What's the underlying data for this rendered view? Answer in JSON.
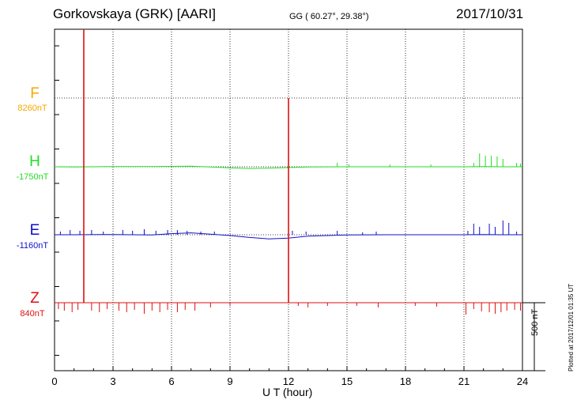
{
  "header": {
    "station": "Gorkovskaya (GRK)  [AARI]",
    "coords": "GG ( 60.27°,  29.38°)",
    "date": "2017/10/31"
  },
  "components": [
    {
      "name": "F",
      "base": "8260nT",
      "color": "#f5a800"
    },
    {
      "name": "H",
      "base": "-1750nT",
      "color": "#22dd22"
    },
    {
      "name": "E",
      "base": "-1160nT",
      "color": "#1010cc"
    },
    {
      "name": "Z",
      "base": "840nT",
      "color": "#dd1111"
    }
  ],
  "axis": {
    "xlabel": "U T (hour)",
    "ticks": [
      "0",
      "3",
      "6",
      "9",
      "12",
      "15",
      "18",
      "21",
      "24"
    ]
  },
  "scale": {
    "label": "500 nT"
  },
  "footer": {
    "plotted": "Plotted at 2017/12/01 01:35 UT"
  },
  "chart_data": {
    "type": "line",
    "xlim": [
      0,
      24
    ],
    "xlabel": "U T (hour)",
    "grid": true,
    "series": [
      {
        "name": "H",
        "x": [
          0,
          1,
          3,
          5,
          7,
          8,
          9,
          10,
          11,
          12,
          13,
          15,
          17,
          19,
          21,
          22,
          23,
          24
        ],
        "y": [
          -1750,
          -1752,
          -1748,
          -1749,
          -1746,
          -1752,
          -1758,
          -1762,
          -1760,
          -1756,
          -1752,
          -1750,
          -1750,
          -1750,
          -1750,
          -1749,
          -1750,
          -1750
        ]
      },
      {
        "name": "E",
        "x": [
          0,
          1,
          3,
          5,
          6,
          7,
          8,
          9,
          10,
          11,
          12,
          13,
          15,
          17,
          19,
          21,
          22,
          23,
          24
        ],
        "y": [
          -1160,
          -1160,
          -1158,
          -1162,
          -1152,
          -1146,
          -1156,
          -1166,
          -1180,
          -1190,
          -1185,
          -1170,
          -1162,
          -1160,
          -1160,
          -1160,
          -1158,
          -1160,
          -1160
        ]
      },
      {
        "name": "Z",
        "x": [
          0,
          3,
          6,
          9,
          12,
          15,
          18,
          21,
          24
        ],
        "y": [
          840,
          840,
          840,
          840,
          840,
          840,
          840,
          840,
          840
        ]
      }
    ]
  }
}
